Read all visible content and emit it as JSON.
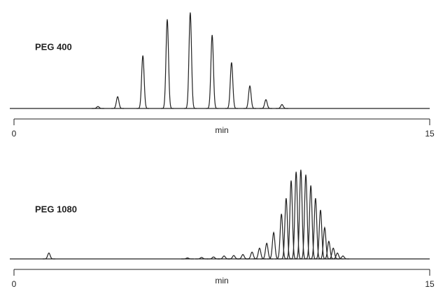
{
  "chart_data": [
    {
      "type": "chromatogram",
      "label": "PEG 400",
      "xlabel": "min",
      "xlim": [
        0,
        15
      ],
      "xticks": [
        0,
        15
      ],
      "ylim": [
        0,
        100
      ],
      "color": "#222222",
      "x": [
        3.03,
        3.74,
        4.65,
        5.53,
        6.36,
        7.15,
        7.85,
        8.51,
        9.09,
        9.67
      ],
      "values": [
        2,
        12,
        54,
        91,
        98,
        75,
        47,
        23,
        9,
        4
      ]
    },
    {
      "type": "chromatogram",
      "label": "PEG 1080",
      "xlabel": "min",
      "xlim": [
        0,
        15
      ],
      "xticks": [
        0,
        15
      ],
      "ylim": [
        0,
        100
      ],
      "color": "#222222",
      "x": [
        1.26,
        6.26,
        6.77,
        7.2,
        7.58,
        7.93,
        8.26,
        8.59,
        8.86,
        9.12,
        9.37,
        9.65,
        9.82,
        10.0,
        10.18,
        10.35,
        10.53,
        10.71,
        10.88,
        11.06,
        11.21,
        11.36,
        11.52,
        11.67,
        11.87
      ],
      "values": [
        6,
        1,
        1.5,
        2,
        3,
        3.5,
        4.5,
        7,
        11,
        16,
        27,
        46,
        62,
        80,
        89,
        91,
        86,
        75,
        62,
        50,
        32,
        18,
        11,
        6,
        3
      ]
    }
  ]
}
